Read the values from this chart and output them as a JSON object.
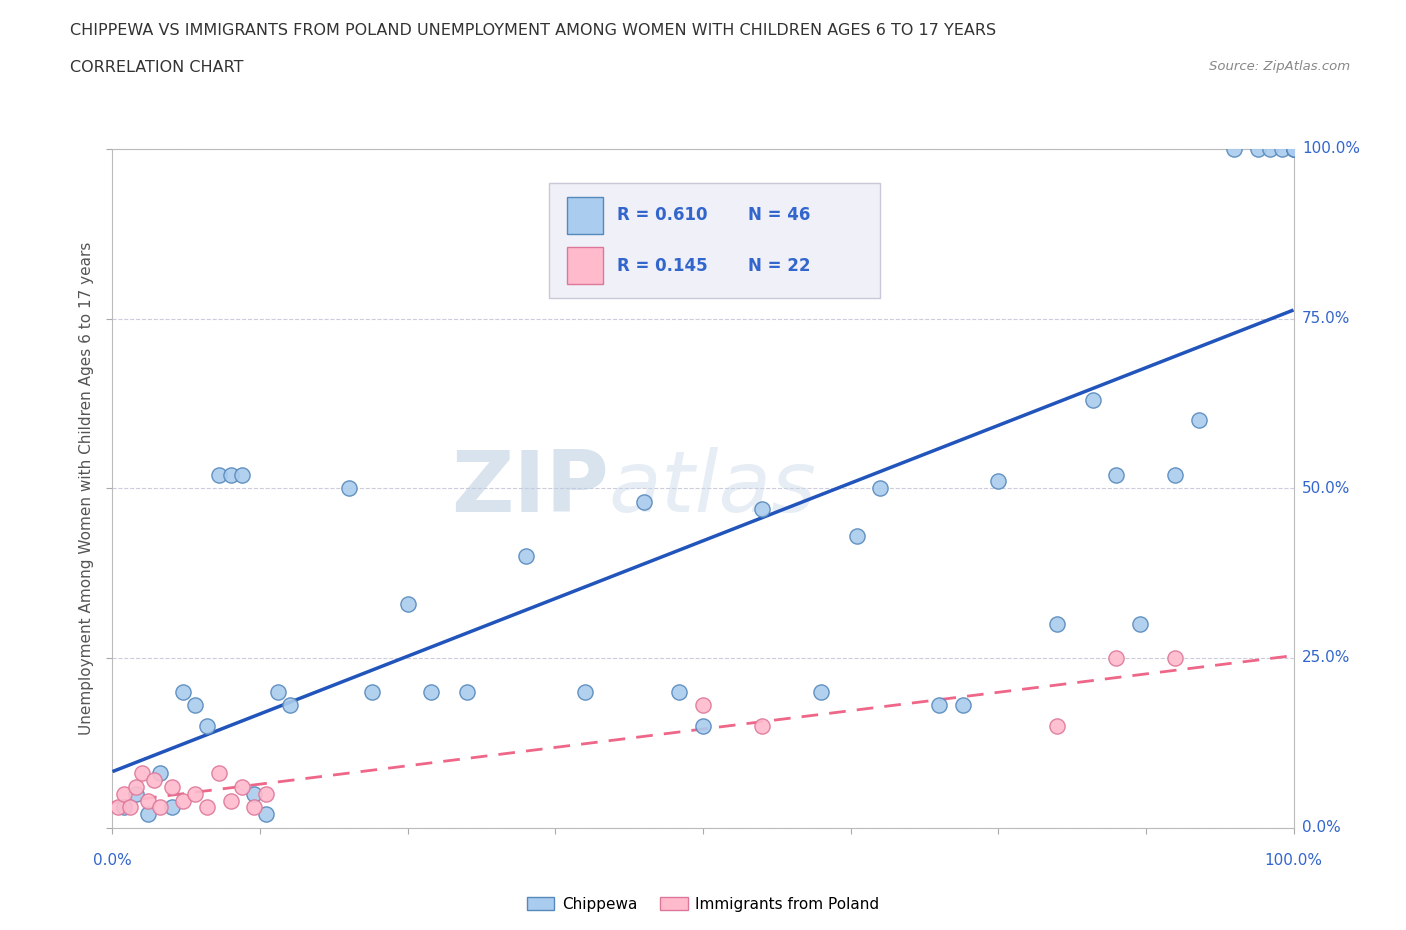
{
  "title_line1": "CHIPPEWA VS IMMIGRANTS FROM POLAND UNEMPLOYMENT AMONG WOMEN WITH CHILDREN AGES 6 TO 17 YEARS",
  "title_line2": "CORRELATION CHART",
  "source_text": "Source: ZipAtlas.com",
  "ylabel": "Unemployment Among Women with Children Ages 6 to 17 years",
  "ytick_values": [
    0,
    25,
    50,
    75,
    100
  ],
  "ytick_right_labels": [
    "0.0%",
    "25.0%",
    "50.0%",
    "75.0%",
    "100.0%"
  ],
  "xtick_values": [
    0,
    12.5,
    25,
    37.5,
    50,
    62.5,
    75,
    87.5,
    100
  ],
  "watermark_line1": "ZIP",
  "watermark_line2": "atlas",
  "legend_bg_color": "#f0f0f8",
  "legend_border_color": "#c8c8d8",
  "chippewa_edge_color": "#5588bb",
  "chippewa_face_color": "#aaccee",
  "poland_edge_color": "#dd7799",
  "poland_face_color": "#ffbbcc",
  "regression_blue_color": "#2255bb",
  "regression_pink_color": "#ee6688",
  "R_chippewa": 0.61,
  "N_chippewa": 46,
  "R_poland": 0.145,
  "N_poland": 22,
  "chippewa_x": [
    1,
    2,
    3,
    4,
    5,
    6,
    7,
    8,
    9,
    10,
    11,
    12,
    13,
    14,
    15,
    20,
    22,
    25,
    27,
    30,
    35,
    40,
    45,
    48,
    50,
    55,
    60,
    63,
    65,
    70,
    72,
    75,
    80,
    83,
    85,
    87,
    90,
    92,
    95,
    97,
    98,
    99,
    100,
    100,
    100,
    100
  ],
  "chippewa_y": [
    3,
    5,
    2,
    8,
    3,
    20,
    18,
    15,
    52,
    52,
    52,
    5,
    2,
    20,
    18,
    50,
    20,
    33,
    20,
    20,
    40,
    20,
    48,
    20,
    15,
    47,
    20,
    43,
    50,
    18,
    18,
    51,
    30,
    63,
    52,
    30,
    52,
    60,
    100,
    100,
    100,
    100,
    100,
    100,
    100,
    100
  ],
  "poland_x": [
    0.5,
    1,
    1.5,
    2,
    2.5,
    3,
    3.5,
    4,
    5,
    6,
    7,
    8,
    9,
    10,
    11,
    12,
    13,
    50,
    55,
    80,
    85,
    90
  ],
  "poland_y": [
    3,
    5,
    3,
    6,
    8,
    4,
    7,
    3,
    6,
    4,
    5,
    3,
    8,
    4,
    6,
    3,
    5,
    18,
    15,
    15,
    25,
    25
  ],
  "grid_color": "#ccccdd",
  "background_color": "#ffffff",
  "title_color": "#333333",
  "axis_label_color": "#555555",
  "tick_label_color": "#3366cc",
  "watermark_color_zip": "#c8d8e8",
  "watermark_color_atlas": "#c8d8e8"
}
